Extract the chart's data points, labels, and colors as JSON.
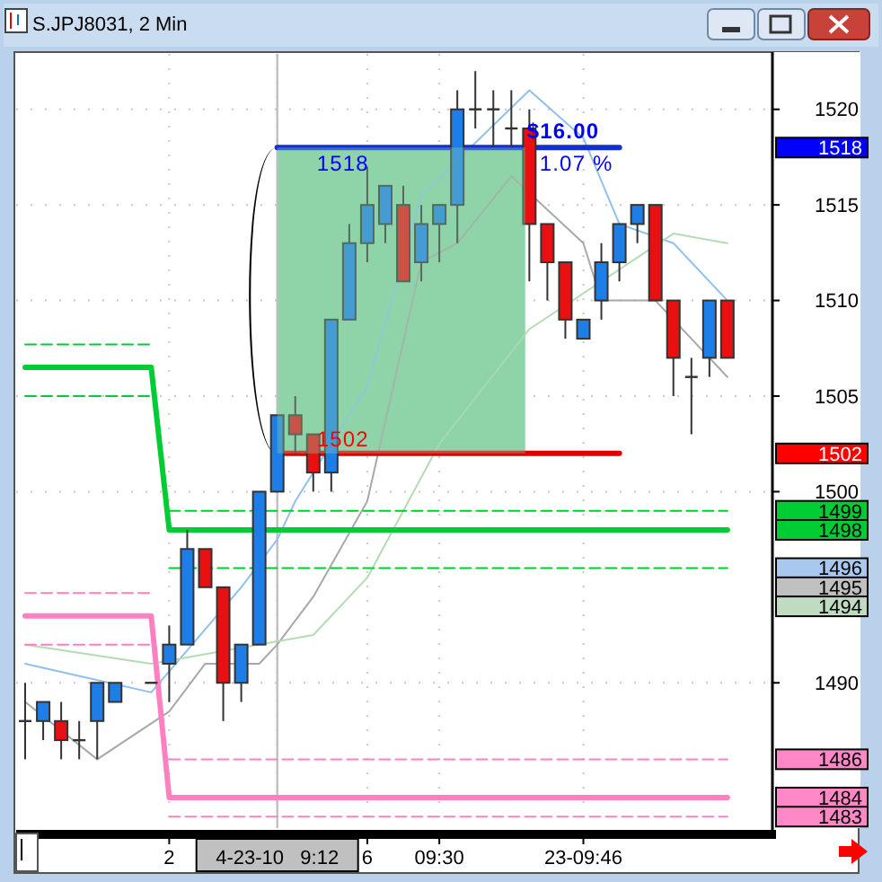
{
  "chart_data": {
    "type": "candlestick",
    "title": "S.JPJ8031, 2 Min",
    "categories": [
      null,
      null,
      null,
      null,
      null,
      null,
      null,
      null,
      "2",
      null,
      null,
      null,
      null,
      null,
      "4-23-10   9:12",
      null,
      null,
      null,
      null,
      "6",
      null,
      null,
      null,
      "09:30",
      null,
      null,
      null,
      null,
      null,
      null,
      null,
      "23-09:46",
      null,
      null,
      null,
      null,
      null,
      null,
      null,
      null
    ],
    "ylim": [
      1482.4,
      1522.9
    ],
    "yticks": [
      1490,
      1500,
      1505,
      1510,
      1515,
      1520
    ],
    "grid": true,
    "series": [
      {
        "type": "line",
        "color": "#90c0f0",
        "values": [
          1491,
          null,
          null,
          null,
          null,
          null,
          null,
          1489.5,
          null,
          null,
          null,
          null,
          1495,
          null,
          1497.5,
          1499.5,
          null,
          null,
          null,
          1505.5,
          null,
          null,
          1515.5,
          null,
          null,
          null,
          null,
          null,
          1521,
          null,
          null,
          1518.5,
          null,
          1514,
          null,
          null,
          1513,
          null,
          null,
          1510
        ]
      },
      {
        "type": "line",
        "color": "#a8a8a8",
        "values": [
          1489,
          null,
          null,
          null,
          1486,
          null,
          null,
          null,
          1488.5,
          null,
          1491,
          null,
          null,
          1491,
          1492,
          null,
          1494.5,
          null,
          null,
          1499.5,
          null,
          null,
          1512,
          null,
          1513,
          null,
          null,
          1516.5,
          null,
          null,
          null,
          1513,
          1510,
          null,
          null,
          1510,
          null,
          null,
          null,
          1506
        ]
      },
      {
        "type": "line",
        "color": "#b4dcb4",
        "values": [
          1492,
          null,
          null,
          null,
          null,
          null,
          null,
          1491,
          null,
          null,
          null,
          null,
          null,
          null,
          null,
          null,
          1492.5,
          null,
          null,
          1495.5,
          null,
          null,
          null,
          1502.5,
          null,
          null,
          null,
          null,
          1508.5,
          null,
          null,
          null,
          null,
          null,
          null,
          null,
          1513.5,
          null,
          null,
          1513
        ]
      },
      {
        "type": "line",
        "color": "#00cc33",
        "values": [
          1506.5,
          null,
          null,
          null,
          null,
          null,
          null,
          1506.5,
          1498,
          null,
          null,
          null,
          null,
          null,
          null,
          null,
          null,
          null,
          null,
          null,
          null,
          null,
          null,
          null,
          null,
          null,
          null,
          null,
          null,
          null,
          null,
          null,
          null,
          null,
          null,
          null,
          null,
          null,
          null,
          1498
        ]
      },
      {
        "type": "line",
        "color": "#00cc33",
        "line_style": "dashed",
        "values": [
          1507.7,
          null,
          null,
          null,
          null,
          null,
          null,
          1507.7,
          null,
          null,
          null,
          null,
          null,
          null,
          null,
          null,
          null,
          null,
          null,
          null,
          null,
          null,
          null,
          null,
          null,
          null,
          null,
          null,
          null,
          null,
          null,
          null,
          null,
          null,
          null,
          null,
          null,
          null,
          null,
          null
        ]
      },
      {
        "type": "line",
        "color": "#00cc33",
        "line_style": "dashed",
        "values": [
          null,
          null,
          null,
          null,
          null,
          null,
          null,
          null,
          1499,
          null,
          null,
          null,
          null,
          null,
          null,
          null,
          null,
          null,
          null,
          null,
          null,
          null,
          null,
          null,
          null,
          null,
          null,
          null,
          null,
          null,
          null,
          null,
          null,
          null,
          null,
          null,
          null,
          null,
          null,
          1499
        ]
      },
      {
        "type": "line",
        "color": "#00cc33",
        "line_style": "dashed",
        "values": [
          1505,
          null,
          null,
          null,
          null,
          null,
          null,
          1505,
          null,
          null,
          null,
          null,
          null,
          null,
          null,
          null,
          null,
          null,
          null,
          null,
          null,
          null,
          null,
          null,
          null,
          null,
          null,
          null,
          null,
          null,
          null,
          null,
          null,
          null,
          null,
          null,
          null,
          null,
          null,
          null
        ]
      },
      {
        "type": "line",
        "color": "#00cc33",
        "line_style": "dashed",
        "values": [
          null,
          null,
          null,
          null,
          null,
          null,
          null,
          null,
          1496,
          null,
          null,
          null,
          null,
          null,
          null,
          null,
          null,
          null,
          null,
          null,
          null,
          null,
          null,
          null,
          null,
          null,
          null,
          null,
          null,
          null,
          null,
          null,
          null,
          null,
          null,
          null,
          null,
          null,
          null,
          1496
        ]
      },
      {
        "type": "line",
        "color": "#ff80c0",
        "values": [
          1493.5,
          null,
          null,
          null,
          null,
          null,
          null,
          1493.5,
          1484,
          null,
          null,
          null,
          null,
          null,
          null,
          null,
          null,
          null,
          null,
          null,
          null,
          null,
          null,
          null,
          null,
          null,
          null,
          null,
          null,
          null,
          null,
          null,
          null,
          null,
          null,
          null,
          null,
          null,
          null,
          1484
        ]
      },
      {
        "type": "line",
        "color": "#ff80c0",
        "line_style": "dashed",
        "values": [
          1494.7,
          null,
          null,
          null,
          null,
          null,
          null,
          1494.7,
          null,
          null,
          null,
          null,
          null,
          null,
          null,
          null,
          null,
          null,
          null,
          null,
          null,
          null,
          null,
          null,
          null,
          null,
          null,
          null,
          null,
          null,
          null,
          null,
          null,
          null,
          null,
          null,
          null,
          null,
          null,
          null
        ]
      },
      {
        "type": "line",
        "color": "#ff80c0",
        "line_style": "dashed",
        "values": [
          null,
          null,
          null,
          null,
          null,
          null,
          null,
          null,
          1486,
          null,
          null,
          null,
          null,
          null,
          null,
          null,
          null,
          null,
          null,
          null,
          null,
          null,
          null,
          null,
          null,
          null,
          null,
          null,
          null,
          null,
          null,
          null,
          null,
          null,
          null,
          null,
          null,
          null,
          null,
          1486
        ]
      },
      {
        "type": "line",
        "color": "#ff80c0",
        "line_style": "dashed",
        "values": [
          1492,
          null,
          null,
          null,
          null,
          null,
          null,
          1492,
          null,
          null,
          null,
          null,
          null,
          null,
          null,
          null,
          null,
          null,
          null,
          null,
          null,
          null,
          null,
          null,
          null,
          null,
          null,
          null,
          null,
          null,
          null,
          null,
          null,
          null,
          null,
          null,
          null,
          null,
          null,
          null
        ]
      },
      {
        "type": "line",
        "color": "#ff80c0",
        "line_style": "dashed",
        "values": [
          null,
          null,
          null,
          null,
          null,
          null,
          null,
          null,
          1483,
          null,
          null,
          null,
          null,
          null,
          null,
          null,
          null,
          null,
          null,
          null,
          null,
          null,
          null,
          null,
          null,
          null,
          null,
          null,
          null,
          null,
          null,
          null,
          null,
          null,
          null,
          null,
          null,
          null,
          null,
          1483
        ]
      },
      {
        "type": "line",
        "color": "#1030d0",
        "values": [
          null,
          null,
          null,
          null,
          null,
          null,
          null,
          null,
          null,
          null,
          null,
          null,
          null,
          null,
          1518,
          null,
          null,
          null,
          null,
          null,
          null,
          null,
          null,
          null,
          null,
          null,
          null,
          null,
          null,
          null,
          null,
          null,
          null,
          1518,
          null,
          null,
          null,
          null,
          null,
          null
        ]
      },
      {
        "type": "line",
        "color": "#e00000",
        "values": [
          null,
          null,
          null,
          null,
          null,
          null,
          null,
          null,
          null,
          null,
          null,
          null,
          null,
          null,
          1502,
          null,
          null,
          null,
          null,
          null,
          null,
          null,
          null,
          null,
          null,
          null,
          null,
          null,
          null,
          null,
          null,
          null,
          null,
          1502,
          null,
          null,
          null,
          null,
          null,
          null
        ]
      },
      {
        "ohlc": [
          [
            1488,
            1490,
            1486,
            1488
          ],
          [
            1488,
            1489,
            1487,
            1489
          ],
          [
            1488,
            1489,
            1486,
            1487
          ],
          [
            1487,
            1488,
            1486,
            1487
          ],
          [
            1488,
            1490,
            1486,
            1490
          ],
          [
            1489,
            1490,
            1489,
            1490
          ],
          null,
          [
            1490,
            1490,
            1490,
            1490
          ],
          [
            1491,
            1493,
            1489,
            1492
          ],
          [
            1492,
            1498,
            1492,
            1497
          ],
          [
            1497,
            1497,
            1495,
            1495
          ],
          [
            1495,
            1495,
            1488,
            1490
          ],
          [
            1490,
            1492,
            1489,
            1492
          ],
          [
            1492,
            1500,
            1492,
            1500
          ],
          [
            1500,
            1504,
            1500,
            1504
          ],
          [
            1504,
            1505,
            1502,
            1503
          ],
          [
            1503,
            1503,
            1500,
            1501
          ],
          [
            1501,
            1509,
            1500,
            1509
          ],
          [
            1509,
            1514,
            1509,
            1513
          ],
          [
            1513,
            1517,
            1512,
            1515
          ],
          [
            1514,
            1516,
            1513,
            1516
          ],
          [
            1515,
            1516,
            1511,
            1511
          ],
          [
            1512,
            1515,
            1511,
            1514
          ],
          [
            1514,
            1515,
            1512,
            1515
          ],
          [
            1515,
            1521,
            1513,
            1520
          ],
          [
            1520,
            1522,
            1519,
            1520
          ],
          [
            1520,
            1521,
            1518,
            1520
          ],
          [
            1519,
            1521,
            1518,
            1519
          ],
          [
            1519,
            1520,
            1511,
            1514
          ],
          [
            1514,
            1514,
            1510,
            1512
          ],
          [
            1512,
            1512,
            1508,
            1509
          ],
          [
            1508,
            1509,
            1508,
            1509
          ],
          [
            1510,
            1513,
            1509,
            1512
          ],
          [
            1512,
            1514,
            1511,
            1514
          ],
          [
            1514,
            1515,
            1513,
            1515
          ],
          [
            1515,
            1515,
            1510,
            1510
          ],
          [
            1510,
            1510,
            1505,
            1507
          ],
          [
            1506,
            1507,
            1503,
            1506
          ],
          [
            1507,
            1510,
            1506,
            1510
          ],
          [
            1510,
            1510,
            1507,
            1507
          ]
        ],
        "colors": [
          "#333333",
          "#1e7ee8",
          "#e81010",
          "#333333",
          "#1e7ee8",
          "#1e7ee8",
          null,
          "#333333",
          "#1e7ee8",
          "#1e7ee8",
          "#e81010",
          "#e81010",
          "#1e7ee8",
          "#1e7ee8",
          "#1e7ee8",
          "#e81010",
          "#e81010",
          "#1e7ee8",
          "#1e7ee8",
          "#1e7ee8",
          "#1e7ee8",
          "#e81010",
          "#1e7ee8",
          "#1e7ee8",
          "#1e7ee8",
          "#333333",
          "#333333",
          "#333333",
          "#e81010",
          "#e81010",
          "#e81010",
          "#1e7ee8",
          "#1e7ee8",
          "#1e7ee8",
          "#1e7ee8",
          "#e81010",
          "#e81010",
          "#333333",
          "#1e7ee8",
          "#e81010"
        ]
      }
    ],
    "bands": [
      {
        "axis": "y",
        "from": 1502,
        "to": 1518,
        "color": "#8fd4aa"
      }
    ],
    "ref_lines": [
      {
        "axis": "x",
        "value": "4-23-10   9:12",
        "color": "#c0c0c0"
      },
      {
        "axis": "y",
        "value": 1518,
        "label": "1518",
        "color": "#0000ff"
      },
      {
        "axis": "y",
        "value": 1502,
        "label": "1502",
        "color": "#ff0000"
      },
      {
        "axis": "y",
        "value": 1499,
        "label": "1499",
        "color": "#00cc33"
      },
      {
        "axis": "y",
        "value": 1498,
        "label": "1498",
        "color": "#00cc33"
      },
      {
        "axis": "y",
        "value": 1496,
        "label": "1496",
        "color": "#a8c8f0"
      },
      {
        "axis": "y",
        "value": 1495,
        "label": "1495",
        "color": "#c0c0c0"
      },
      {
        "axis": "y",
        "value": 1494,
        "label": "1494",
        "color": "#c0dcc0"
      },
      {
        "axis": "y",
        "value": 1486,
        "label": "1486",
        "color": "#ff88c8"
      },
      {
        "axis": "y",
        "value": 1484,
        "label": "1484",
        "color": "#ff88c8"
      },
      {
        "axis": "y",
        "value": 1483,
        "label": "1483",
        "color": "#ff88c8"
      }
    ],
    "annotations": [
      {
        "text": "1518",
        "x": "4-23-10   9:12",
        "y": 1518
      },
      {
        "text": "1502",
        "x": "4-23-10   9:12",
        "y": 1502
      },
      "$16.00",
      "1.07 %"
    ]
  }
}
